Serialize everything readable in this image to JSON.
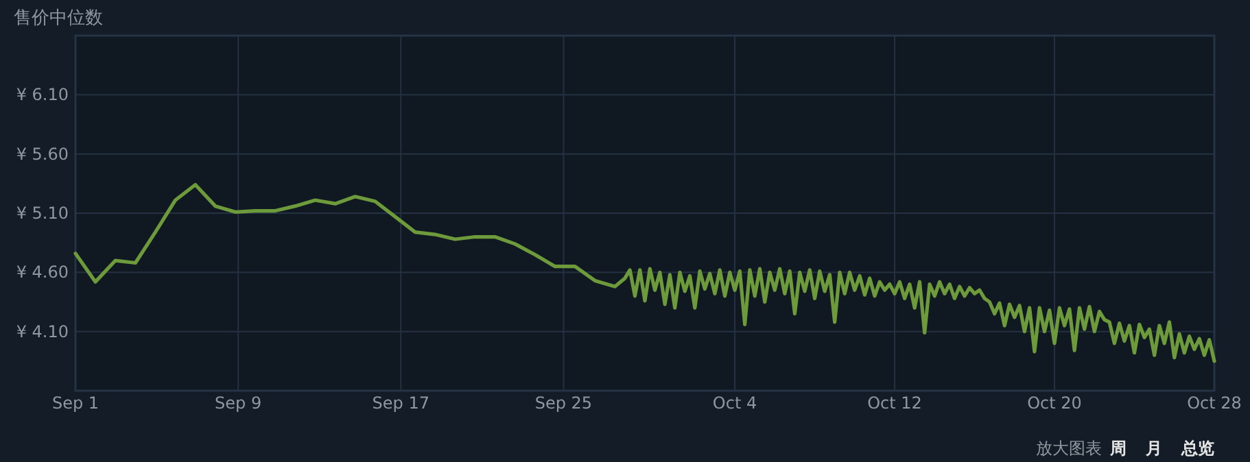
{
  "chart_data": {
    "type": "line",
    "title": "售价中位数",
    "annotations": [
      "放大图表",
      "周",
      "月",
      "总览"
    ],
    "xlim": [
      "--09-01",
      "--10-28"
    ],
    "xticks": [
      {
        "value": "--09-01",
        "label": "Sep 1"
      },
      {
        "value": "--09-09T03:26",
        "label": "Sep 9"
      },
      {
        "value": "--09-17T06:51",
        "label": "Sep 17"
      },
      {
        "value": "--09-25T10:17",
        "label": "Sep 25"
      },
      {
        "value": "--10-04",
        "label": "Oct 4"
      },
      {
        "value": "--10-12",
        "label": "Oct 12"
      },
      {
        "value": "--10-20",
        "label": "Oct 20"
      },
      {
        "value": "--10-28",
        "label": "Oct 28"
      }
    ],
    "ylim": [
      3.6,
      6.6
    ],
    "yticks": [
      {
        "value": 4.1,
        "label": "¥ 4.10"
      },
      {
        "value": 4.6,
        "label": "¥ 4.60"
      },
      {
        "value": 5.1,
        "label": "¥ 5.10"
      },
      {
        "value": 5.6,
        "label": "¥ 5.60"
      },
      {
        "value": 6.1,
        "label": "¥ 6.10"
      }
    ],
    "grid": true,
    "line_style": "solid",
    "series": [
      {
        "color": "#6d9a3b",
        "x": [
          "--09-01",
          "--09-02",
          "--09-03",
          "--09-04",
          "--09-05",
          "--09-06",
          "--09-07",
          "--09-08",
          "--09-09",
          "--09-10",
          "--09-11",
          "--09-12",
          "--09-13",
          "--09-14",
          "--09-15",
          "--09-16",
          "--09-17",
          "--09-18",
          "--09-19",
          "--09-20",
          "--09-21",
          "--09-22",
          "--09-23",
          "--09-24",
          "--09-25",
          "--09-26",
          "--09-27",
          "--09-28",
          "--09-28T12:00",
          "--09-28T18:00",
          "--09-29T00:00",
          "--09-29T06:00",
          "--09-29T12:00",
          "--09-29T18:00",
          "--09-30T00:00",
          "--09-30T06:00",
          "--09-30T12:00",
          "--09-30T18:00",
          "--10-01T00:00",
          "--10-01T06:00",
          "--10-01T12:00",
          "--10-01T18:00",
          "--10-02T00:00",
          "--10-02T06:00",
          "--10-02T12:00",
          "--10-02T18:00",
          "--10-03T00:00",
          "--10-03T06:00",
          "--10-03T12:00",
          "--10-03T18:00",
          "--10-04T00:00",
          "--10-04T06:00",
          "--10-04T12:00",
          "--10-04T18:00",
          "--10-05T00:00",
          "--10-05T06:00",
          "--10-05T12:00",
          "--10-05T18:00",
          "--10-06T00:00",
          "--10-06T06:00",
          "--10-06T12:00",
          "--10-06T18:00",
          "--10-07T00:00",
          "--10-07T06:00",
          "--10-07T12:00",
          "--10-07T18:00",
          "--10-08T00:00",
          "--10-08T06:00",
          "--10-08T12:00",
          "--10-08T18:00",
          "--10-09T00:00",
          "--10-09T06:00",
          "--10-09T12:00",
          "--10-09T18:00",
          "--10-10T00:00",
          "--10-10T06:00",
          "--10-10T12:00",
          "--10-10T18:00",
          "--10-11T00:00",
          "--10-11T06:00",
          "--10-11T12:00",
          "--10-11T18:00",
          "--10-12T00:00",
          "--10-12T06:00",
          "--10-12T12:00",
          "--10-12T18:00",
          "--10-13T00:00",
          "--10-13T06:00",
          "--10-13T12:00",
          "--10-13T18:00",
          "--10-14T00:00",
          "--10-14T06:00",
          "--10-14T12:00",
          "--10-14T18:00",
          "--10-15T00:00",
          "--10-15T06:00",
          "--10-15T12:00",
          "--10-15T18:00",
          "--10-16T00:00",
          "--10-16T06:00",
          "--10-16T12:00",
          "--10-16T18:00",
          "--10-17T00:00",
          "--10-17T06:00",
          "--10-17T12:00",
          "--10-17T18:00",
          "--10-18T00:00",
          "--10-18T06:00",
          "--10-18T12:00",
          "--10-18T18:00",
          "--10-19T00:00",
          "--10-19T06:00",
          "--10-19T12:00",
          "--10-19T18:00",
          "--10-20T00:00",
          "--10-20T06:00",
          "--10-20T12:00",
          "--10-20T18:00",
          "--10-21T00:00",
          "--10-21T06:00",
          "--10-21T12:00",
          "--10-21T18:00",
          "--10-22T00:00",
          "--10-22T06:00",
          "--10-22T12:00",
          "--10-22T18:00",
          "--10-23T00:00",
          "--10-23T06:00",
          "--10-23T12:00",
          "--10-23T18:00",
          "--10-24T00:00",
          "--10-24T06:00",
          "--10-24T12:00",
          "--10-24T18:00",
          "--10-25T00:00",
          "--10-25T06:00",
          "--10-25T12:00",
          "--10-25T18:00",
          "--10-26T00:00",
          "--10-26T06:00",
          "--10-26T12:00",
          "--10-26T18:00",
          "--10-27T00:00",
          "--10-27T06:00",
          "--10-27T12:00",
          "--10-27T18:00",
          "--10-28T00:00"
        ],
        "values": [
          4.76,
          4.52,
          4.7,
          4.68,
          4.94,
          5.21,
          5.34,
          5.16,
          5.11,
          5.12,
          5.12,
          5.16,
          5.21,
          5.18,
          5.24,
          5.2,
          5.07,
          4.94,
          4.92,
          4.88,
          4.9,
          4.9,
          4.84,
          4.75,
          4.65,
          4.65,
          4.53,
          4.48,
          4.55,
          4.62,
          4.4,
          4.62,
          4.36,
          4.63,
          4.45,
          4.6,
          4.33,
          4.58,
          4.3,
          4.6,
          4.44,
          4.57,
          4.3,
          4.61,
          4.46,
          4.59,
          4.42,
          4.62,
          4.4,
          4.6,
          4.45,
          4.61,
          4.16,
          4.62,
          4.4,
          4.63,
          4.35,
          4.6,
          4.45,
          4.63,
          4.42,
          4.61,
          4.25,
          4.6,
          4.44,
          4.62,
          4.38,
          4.61,
          4.44,
          4.58,
          4.18,
          4.6,
          4.42,
          4.6,
          4.45,
          4.57,
          4.41,
          4.55,
          4.4,
          4.52,
          4.45,
          4.5,
          4.42,
          4.52,
          4.38,
          4.5,
          4.3,
          4.52,
          4.09,
          4.5,
          4.4,
          4.52,
          4.42,
          4.5,
          4.38,
          4.48,
          4.4,
          4.47,
          4.42,
          4.45,
          4.38,
          4.35,
          4.25,
          4.34,
          4.15,
          4.33,
          4.22,
          4.32,
          4.1,
          4.3,
          3.93,
          4.3,
          4.1,
          4.28,
          4.0,
          4.3,
          4.15,
          4.29,
          3.94,
          4.3,
          4.12,
          4.31,
          4.1,
          4.27,
          4.2,
          4.18,
          4.0,
          4.17,
          4.02,
          4.15,
          3.92,
          4.16,
          4.05,
          4.12,
          3.9,
          4.15,
          4.0,
          4.18,
          3.88,
          4.08,
          3.92,
          4.06,
          3.95,
          4.04,
          3.9,
          4.03,
          3.85
        ]
      }
    ]
  }
}
